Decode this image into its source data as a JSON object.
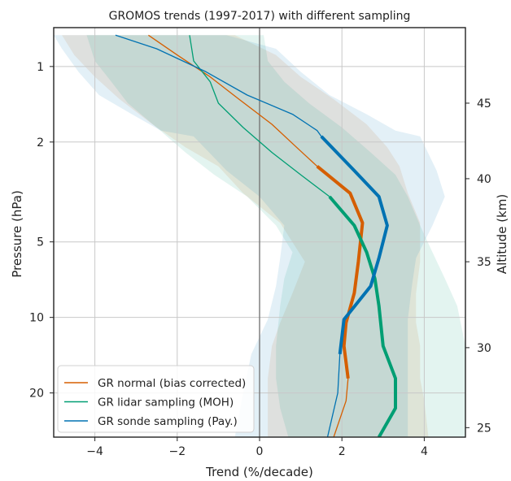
{
  "chart_data": {
    "type": "line",
    "title": "GROMOS trends (1997-2017) with different sampling",
    "xlabel": "Trend (%/decade)",
    "ylabel": "Pressure (hPa)",
    "ylabel_right": "Altitude (km)",
    "xlim": [
      -5,
      5
    ],
    "ylim": [
      30,
      0.7
    ],
    "y_scale": "log",
    "grid": true,
    "legend_position": "lower-left",
    "x_ticks": [
      -4,
      -2,
      0,
      2,
      4
    ],
    "x_tick_labels": [
      "−4",
      "−2",
      "0",
      "2",
      "4"
    ],
    "y_ticks": [
      1,
      2,
      5,
      10,
      20
    ],
    "y_tick_labels": [
      "1",
      "2",
      "5",
      "10",
      "20"
    ],
    "altitude_ticks": [
      {
        "pressure": 1.4,
        "label": "45"
      },
      {
        "pressure": 2.8,
        "label": "40"
      },
      {
        "pressure": 6.0,
        "label": "35"
      },
      {
        "pressure": 13.2,
        "label": "30"
      },
      {
        "pressure": 27.5,
        "label": "25"
      }
    ],
    "series": [
      {
        "name": "GR normal (bias corrected)",
        "color": "#d55e00",
        "points": [
          [
            -2.7,
            0.75
          ],
          [
            -2.0,
            0.9
          ],
          [
            -1.2,
            1.1
          ],
          [
            -0.5,
            1.35
          ],
          [
            0.3,
            1.7
          ],
          [
            0.9,
            2.1
          ],
          [
            1.4,
            2.5
          ],
          [
            2.2,
            3.2
          ],
          [
            2.5,
            4.2
          ],
          [
            2.4,
            6.0
          ],
          [
            2.3,
            8.0
          ],
          [
            2.1,
            10.5
          ],
          [
            2.05,
            13.0
          ],
          [
            2.15,
            17.5
          ],
          [
            2.1,
            21.5
          ],
          [
            1.8,
            30.0
          ]
        ],
        "thick_range": [
          2.5,
          17.5
        ],
        "band_lower": [
          -4.8,
          -4.5,
          -4.0,
          -3.4,
          -2.6,
          -1.8,
          -1.0,
          -0.4,
          0.5,
          1.1,
          0.8,
          0.5,
          0.3,
          0.2,
          0.2,
          0.2
        ],
        "band_upper": [
          -0.6,
          0.4,
          1.0,
          1.8,
          2.6,
          3.1,
          3.4,
          3.6,
          3.9,
          3.9,
          3.8,
          3.8,
          3.9,
          3.9,
          4.0,
          4.1
        ]
      },
      {
        "name": "GR lidar sampling (MOH)",
        "color": "#009e73",
        "points": [
          [
            -1.7,
            0.75
          ],
          [
            -1.6,
            0.95
          ],
          [
            -1.2,
            1.15
          ],
          [
            -1.0,
            1.4
          ],
          [
            -0.4,
            1.75
          ],
          [
            0.3,
            2.2
          ],
          [
            1.0,
            2.7
          ],
          [
            1.7,
            3.3
          ],
          [
            2.3,
            4.3
          ],
          [
            2.6,
            5.5
          ],
          [
            2.8,
            7.0
          ],
          [
            2.9,
            9.0
          ],
          [
            3.0,
            13.0
          ],
          [
            3.3,
            17.5
          ],
          [
            3.3,
            23.0
          ],
          [
            2.9,
            30.0
          ]
        ],
        "thick_range": [
          3.3,
          30.0
        ],
        "band_lower": [
          -4.2,
          -4.0,
          -3.6,
          -3.2,
          -2.5,
          -1.8,
          -1.1,
          -0.3,
          0.4,
          0.8,
          0.6,
          0.5,
          0.4,
          0.4,
          0.5,
          0.7
        ],
        "band_upper": [
          0.1,
          0.2,
          0.6,
          1.2,
          2.0,
          2.7,
          3.3,
          3.6,
          3.9,
          4.2,
          4.5,
          4.8,
          5.0,
          5.0,
          5.0,
          5.0
        ]
      },
      {
        "name": "GR sonde sampling (Pay.)",
        "color": "#0072b2",
        "points": [
          [
            -3.5,
            0.75
          ],
          [
            -2.5,
            0.85
          ],
          [
            -1.3,
            1.05
          ],
          [
            -0.3,
            1.3
          ],
          [
            0.8,
            1.55
          ],
          [
            1.4,
            1.8
          ],
          [
            1.5,
            1.9
          ],
          [
            2.3,
            2.6
          ],
          [
            2.9,
            3.3
          ],
          [
            3.1,
            4.3
          ],
          [
            2.9,
            5.8
          ],
          [
            2.7,
            7.5
          ],
          [
            2.05,
            10.2
          ],
          [
            1.95,
            14.0
          ],
          [
            1.9,
            20.0
          ],
          [
            1.65,
            30.0
          ]
        ],
        "thick_range": [
          1.9,
          14.0
        ],
        "band_lower": [
          -5.0,
          -4.8,
          -4.4,
          -3.9,
          -3.1,
          -2.4,
          -1.6,
          -0.8,
          0.0,
          0.6,
          0.5,
          0.4,
          0.2,
          -0.2,
          -0.4,
          -0.6
        ],
        "band_upper": [
          -0.8,
          0.4,
          1.0,
          1.7,
          2.6,
          3.3,
          3.9,
          4.3,
          4.5,
          4.2,
          3.8,
          3.7,
          3.6,
          3.6,
          3.6,
          3.6
        ]
      }
    ]
  }
}
